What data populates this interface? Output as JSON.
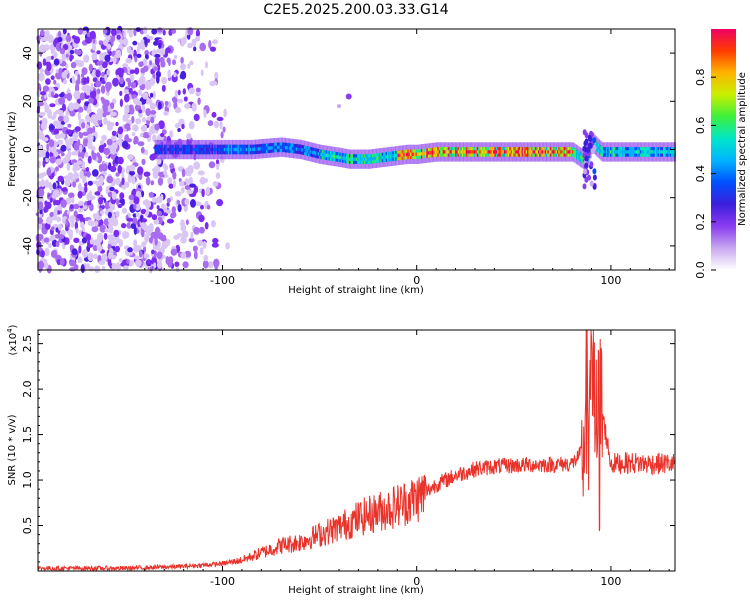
{
  "title": "C2E5.2025.200.03.33.G14",
  "chart_data": [
    {
      "type": "heatmap",
      "title": "C2E5.2025.200.03.33.G14",
      "xlabel": "Height of straight line (km)",
      "ylabel": "Frequency (Hz)",
      "xlim": [
        -195,
        133
      ],
      "ylim": [
        -50,
        50
      ],
      "x_ticks": [
        "-100",
        "0",
        "100"
      ],
      "y_ticks": [
        "-40",
        "-20",
        "0",
        "20",
        "40"
      ],
      "colorbar": {
        "label": "Normalized spectral amplitude",
        "range": [
          0,
          1
        ],
        "ticks": [
          "0.0",
          "0.2",
          "0.4",
          "0.6",
          "0.8"
        ],
        "colors": [
          "#ffffff",
          "#c8a8f0",
          "#8a3cf0",
          "#3c1edc",
          "#0050ff",
          "#00b4ff",
          "#00e6c8",
          "#3cf03c",
          "#c8f000",
          "#ffb400",
          "#ff3c00",
          "#f00064"
        ]
      },
      "ridge": {
        "x": [
          -130,
          -115,
          -100,
          -85,
          -70,
          -60,
          -50,
          -42,
          -35,
          -25,
          -15,
          -5,
          0,
          10,
          30,
          60,
          80,
          87,
          90,
          95,
          110,
          133
        ],
        "y": [
          0,
          0,
          0,
          0,
          1,
          0,
          -2,
          -3,
          -4,
          -4,
          -3,
          -2,
          -2,
          -1,
          -1,
          -1,
          -1,
          -5,
          3,
          -1,
          -1,
          -1
        ]
      }
    },
    {
      "type": "line",
      "xlabel": "Height of straight line (km)",
      "ylabel": "SNR (10 * v/v)",
      "y_multiplier": "(x10",
      "y_multiplier_exp": "4",
      "xlim": [
        -195,
        133
      ],
      "ylim": [
        0,
        26500
      ],
      "x_ticks": [
        "-100",
        "0",
        "100"
      ],
      "y_ticks": [
        "0.5",
        "1.0",
        "1.5",
        "2.0",
        "2.5"
      ],
      "color": "#e8322a",
      "series": [
        {
          "x": [
            -195,
            -150,
            -120,
            -100,
            -90,
            -80,
            -70,
            -60,
            -50,
            -40,
            -30,
            -20,
            -10,
            0,
            10,
            20,
            30,
            40,
            50,
            60,
            70,
            80,
            85,
            88,
            90,
            92,
            95,
            100,
            110,
            120,
            133
          ],
          "values": [
            300,
            300,
            500,
            800,
            1200,
            2000,
            2800,
            3200,
            4000,
            4800,
            5800,
            6500,
            7200,
            8000,
            9500,
            10500,
            11200,
            11500,
            11600,
            11700,
            11700,
            11800,
            13000,
            20000,
            26000,
            15000,
            18000,
            11800,
            11900,
            11800,
            11800
          ]
        }
      ]
    }
  ]
}
